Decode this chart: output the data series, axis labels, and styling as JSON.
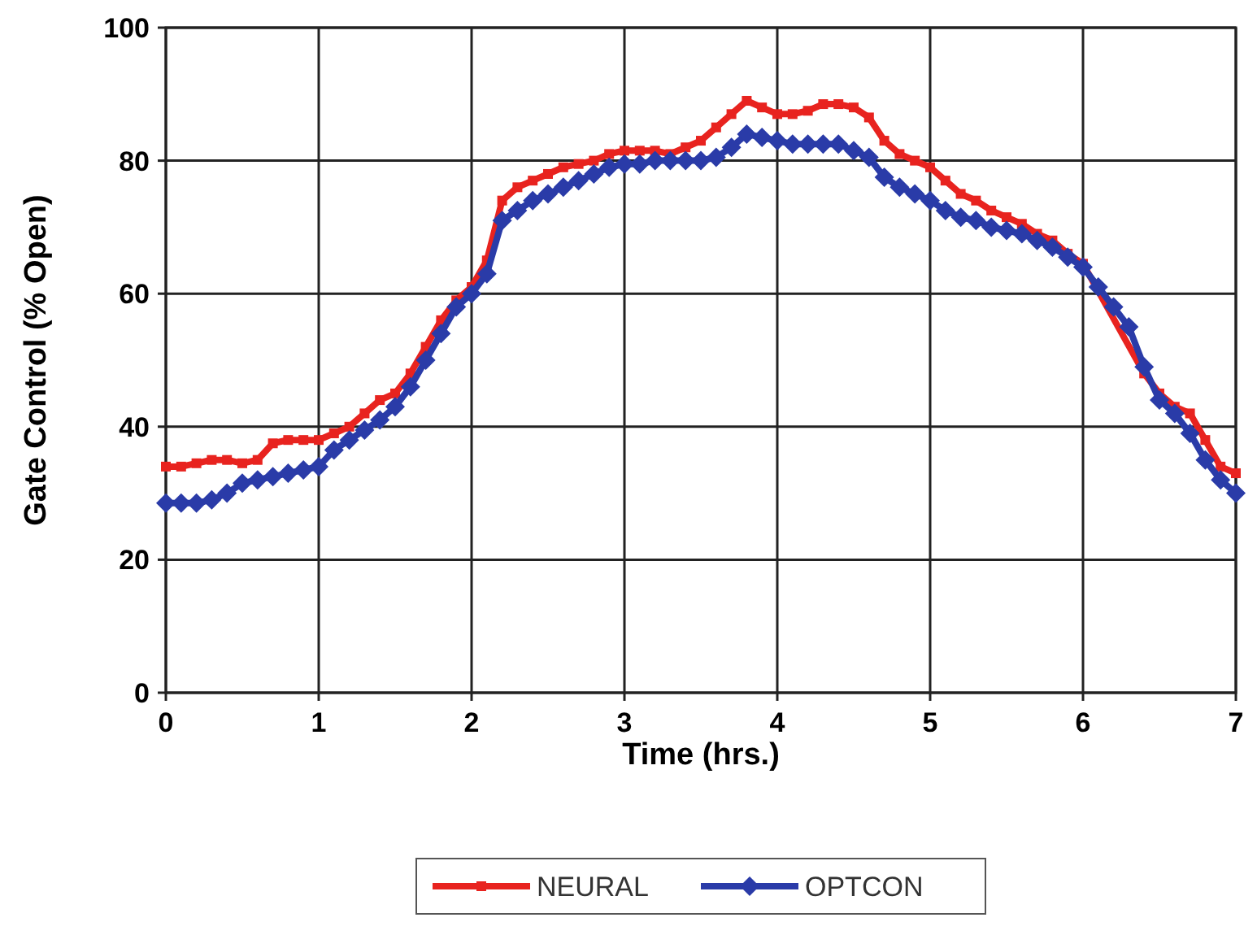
{
  "chart_data": {
    "type": "line",
    "xlabel": "Time (hrs.)",
    "ylabel": "Gate Control (% Open)",
    "x": [
      0,
      0.1,
      0.2,
      0.3,
      0.4,
      0.5,
      0.6,
      0.7,
      0.8,
      0.9,
      1,
      1.1,
      1.2,
      1.3,
      1.4,
      1.5,
      1.6,
      1.7,
      1.8,
      1.9,
      2,
      2.1,
      2.2,
      2.3,
      2.4,
      2.5,
      2.6,
      2.7,
      2.8,
      2.9,
      3,
      3.1,
      3.2,
      3.3,
      3.4,
      3.5,
      3.6,
      3.7,
      3.8,
      3.9,
      4,
      4.1,
      4.2,
      4.3,
      4.4,
      4.5,
      4.6,
      4.7,
      4.8,
      4.9,
      5,
      5.1,
      5.2,
      5.3,
      5.4,
      5.5,
      5.6,
      5.7,
      5.8,
      5.9,
      6,
      6.1,
      6.2,
      6.3,
      6.4,
      6.5,
      6.6,
      6.7,
      6.8,
      6.9,
      7
    ],
    "series": [
      {
        "name": "NEURAL",
        "color": "#e8231f",
        "marker": "square",
        "values": [
          34,
          34,
          34.5,
          35,
          35,
          34.5,
          35,
          37.5,
          38,
          38,
          38,
          39,
          40,
          42,
          44,
          45,
          48,
          52,
          56,
          59,
          61,
          65,
          74,
          76,
          77,
          78,
          79,
          79.5,
          80,
          81,
          81.5,
          81.5,
          81.5,
          81,
          82,
          83,
          85,
          87,
          89,
          88,
          87,
          87,
          87.5,
          88.5,
          88.5,
          88,
          86.5,
          83,
          81,
          80,
          79,
          77,
          75,
          74,
          72.5,
          71.5,
          70.5,
          69,
          68,
          66,
          64.5,
          null,
          null,
          null,
          48,
          45,
          43,
          42,
          38,
          34,
          33
        ]
      },
      {
        "name": "OPTCON",
        "color": "#2a3ba8",
        "marker": "diamond",
        "values": [
          28.5,
          28.5,
          28.5,
          29,
          30,
          31.5,
          32,
          32.5,
          33,
          33.5,
          34,
          36.5,
          38,
          39.5,
          41,
          43,
          46,
          50,
          54,
          58,
          60,
          63,
          71,
          72.5,
          74,
          75,
          76,
          77,
          78,
          79,
          79.5,
          79.5,
          80,
          80,
          80,
          80,
          80.5,
          82,
          84,
          83.5,
          83,
          82.5,
          82.5,
          82.5,
          82.5,
          81.5,
          80.5,
          77.5,
          76,
          75,
          74,
          72.5,
          71.5,
          71,
          70,
          69.5,
          69,
          68,
          67,
          65.5,
          64,
          61,
          58,
          55,
          49,
          44,
          42,
          39,
          35,
          32,
          30
        ]
      }
    ],
    "xlim": [
      0,
      7
    ],
    "xticks": [
      0,
      1,
      2,
      3,
      4,
      5,
      6,
      7
    ],
    "ylim": [
      0,
      100
    ],
    "yticks": [
      0,
      20,
      40,
      60,
      80,
      100
    ],
    "grid": true,
    "legend": "bottom",
    "line_style": "solid"
  }
}
